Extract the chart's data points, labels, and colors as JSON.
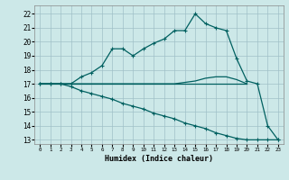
{
  "xlabel": "Humidex (Indice chaleur)",
  "background_color": "#cce8e8",
  "grid_color": "#a0c0c8",
  "line_color": "#006060",
  "xlim": [
    -0.5,
    23.5
  ],
  "ylim": [
    12.7,
    22.6
  ],
  "yticks": [
    13,
    14,
    15,
    16,
    17,
    18,
    19,
    20,
    21,
    22
  ],
  "xticks": [
    0,
    1,
    2,
    3,
    4,
    5,
    6,
    7,
    8,
    9,
    10,
    11,
    12,
    13,
    14,
    15,
    16,
    17,
    18,
    19,
    20,
    21,
    22,
    23
  ],
  "series": [
    {
      "name": "flat_17",
      "x": [
        0,
        20
      ],
      "y": [
        17,
        17
      ],
      "marker": false,
      "lw": 0.9
    },
    {
      "name": "slight_hump",
      "x": [
        0,
        1,
        2,
        3,
        4,
        5,
        6,
        7,
        8,
        9,
        10,
        11,
        12,
        13,
        14,
        15,
        16,
        17,
        18,
        19,
        20
      ],
      "y": [
        17,
        17,
        17,
        17,
        17,
        17,
        17,
        17,
        17,
        17,
        17,
        17,
        17,
        17,
        17.1,
        17.2,
        17.4,
        17.5,
        17.5,
        17.3,
        17
      ],
      "marker": false,
      "lw": 0.9
    },
    {
      "name": "main_curve",
      "x": [
        0,
        1,
        2,
        3,
        4,
        5,
        6,
        7,
        8,
        9,
        10,
        11,
        12,
        13,
        14,
        15,
        16,
        17,
        18,
        19,
        20,
        21,
        22,
        23
      ],
      "y": [
        17,
        17,
        17,
        17,
        17.5,
        17.8,
        18.3,
        19.5,
        19.5,
        19.0,
        19.5,
        19.9,
        20.2,
        20.8,
        20.8,
        22.0,
        21.3,
        21.0,
        20.8,
        18.8,
        17.2,
        17.0,
        14.0,
        13.0
      ],
      "marker": true,
      "lw": 0.9
    },
    {
      "name": "diagonal_down",
      "x": [
        0,
        1,
        2,
        3,
        4,
        5,
        6,
        7,
        8,
        9,
        10,
        11,
        12,
        13,
        14,
        15,
        16,
        17,
        18,
        19,
        20,
        21,
        22,
        23
      ],
      "y": [
        17,
        17,
        17,
        16.8,
        16.5,
        16.3,
        16.1,
        15.9,
        15.6,
        15.4,
        15.2,
        14.9,
        14.7,
        14.5,
        14.2,
        14.0,
        13.8,
        13.5,
        13.3,
        13.1,
        13.0,
        13.0,
        13.0,
        13.0
      ],
      "marker": true,
      "lw": 0.9
    }
  ]
}
